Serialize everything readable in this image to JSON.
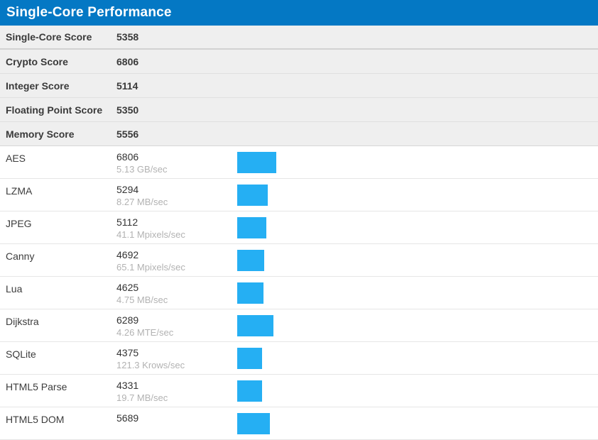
{
  "header": {
    "title": "Single-Core Performance"
  },
  "summary": {
    "rows": [
      {
        "label": "Single-Core Score",
        "score": "5358"
      },
      {
        "label": "Crypto Score",
        "score": "6806"
      },
      {
        "label": "Integer Score",
        "score": "5114"
      },
      {
        "label": "Floating Point Score",
        "score": "5350"
      },
      {
        "label": "Memory Score",
        "score": "5556"
      }
    ]
  },
  "benchmarks": {
    "rows": [
      {
        "name": "AES",
        "score": 6806,
        "rate": "5.13 GB/sec"
      },
      {
        "name": "LZMA",
        "score": 5294,
        "rate": "8.27 MB/sec"
      },
      {
        "name": "JPEG",
        "score": 5112,
        "rate": "41.1 Mpixels/sec"
      },
      {
        "name": "Canny",
        "score": 4692,
        "rate": "65.1 Mpixels/sec"
      },
      {
        "name": "Lua",
        "score": 4625,
        "rate": "4.75 MB/sec"
      },
      {
        "name": "Dijkstra",
        "score": 6289,
        "rate": "4.26 MTE/sec"
      },
      {
        "name": "SQLite",
        "score": 4375,
        "rate": "121.3 Krows/sec"
      },
      {
        "name": "HTML5 Parse",
        "score": 4331,
        "rate": "19.7 MB/sec"
      },
      {
        "name": "HTML5 DOM",
        "score": 5689,
        "rate": ""
      }
    ]
  },
  "colors": {
    "header_bg": "#0478c4",
    "bar": "#25aff3",
    "summary_bg": "#efefef"
  }
}
